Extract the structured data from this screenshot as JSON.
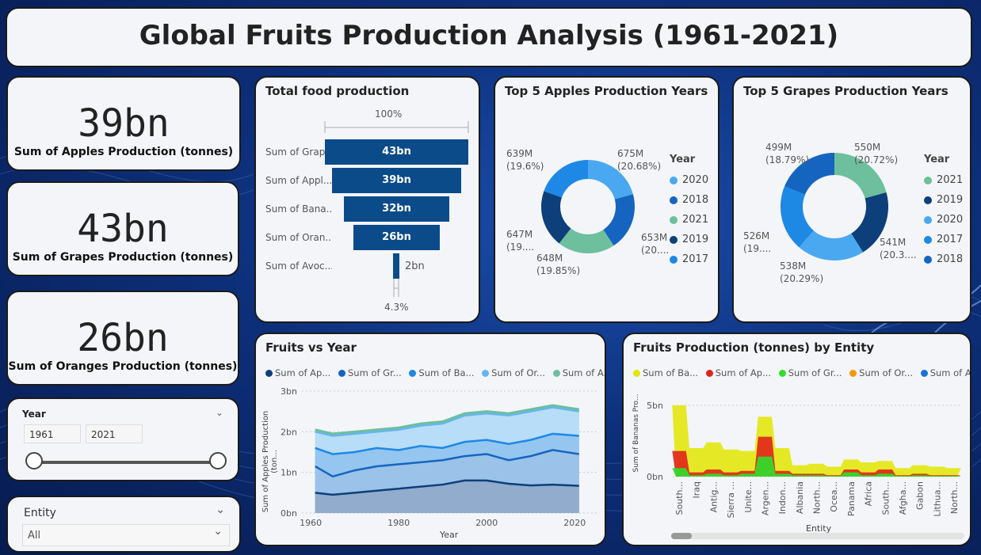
{
  "title": "Global Fruits Production Analysis (1961-2021)",
  "kpis": [
    {
      "value": "39bn",
      "label": "Sum of Apples Production (tonnes)"
    },
    {
      "value": "43bn",
      "label": "Sum of Grapes  Production (tonnes)"
    },
    {
      "value": "26bn",
      "label": "Sum of Oranges  Production (tonnes)"
    }
  ],
  "year_slicer": {
    "label": "Year",
    "from": "1961",
    "to": "2021"
  },
  "entity_slicer": {
    "label": "Entity",
    "value": "All"
  },
  "funnel": {
    "title": "Total food production",
    "top_pct": "100%",
    "bottom_pct": "4.3%",
    "bars": [
      {
        "label": "Sum of Grap...",
        "value": "43bn"
      },
      {
        "label": "Sum of Appl...",
        "value": "39bn"
      },
      {
        "label": "Sum of Bana...",
        "value": "32bn"
      },
      {
        "label": "Sum of Oran...",
        "value": "26bn"
      },
      {
        "label": "Sum of Avoc...",
        "value": "2bn"
      }
    ]
  },
  "apples_donut": {
    "title": "Top 5 Apples Production Years",
    "legend_title": "Year",
    "legend": [
      {
        "label": "2020",
        "color": "#4aa8f0"
      },
      {
        "label": "2018",
        "color": "#1565c0"
      },
      {
        "label": "2021",
        "color": "#6dbf9e"
      },
      {
        "label": "2019",
        "color": "#0d3f7a"
      },
      {
        "label": "2017",
        "color": "#1e88e5"
      }
    ],
    "labels": [
      {
        "v": "675M",
        "p": "(20.68%)"
      },
      {
        "v": "653M",
        "p": "(20...."
      },
      {
        "v": "648M",
        "p": "(19.85%)"
      },
      {
        "v": "647M",
        "p": "(19...."
      },
      {
        "v": "639M",
        "p": "(19.6%)"
      }
    ]
  },
  "grapes_donut": {
    "title": "Top 5 Grapes Production Years",
    "legend_title": "Year",
    "legend": [
      {
        "label": "2021",
        "color": "#6dbf9e"
      },
      {
        "label": "2019",
        "color": "#0d3f7a"
      },
      {
        "label": "2020",
        "color": "#4aa8f0"
      },
      {
        "label": "2017",
        "color": "#1e88e5"
      },
      {
        "label": "2018",
        "color": "#1565c0"
      }
    ],
    "labels": [
      {
        "v": "550M",
        "p": "(20.72%)"
      },
      {
        "v": "541M",
        "p": "(20.3...."
      },
      {
        "v": "538M",
        "p": "(20.29%)"
      },
      {
        "v": "526M",
        "p": "(19...."
      },
      {
        "v": "499M",
        "p": "(18.79%)"
      }
    ]
  },
  "fruits_vs_year": {
    "title": "Fruits vs Year",
    "legend": [
      {
        "label": "Sum of Ap...",
        "color": "#0d3f7a"
      },
      {
        "label": "Sum of Gr...",
        "color": "#1565c0"
      },
      {
        "label": "Sum of Ba...",
        "color": "#1e88e5"
      },
      {
        "label": "Sum of Or...",
        "color": "#64b5f6"
      },
      {
        "label": "Sum of A...",
        "color": "#6dbf9e"
      }
    ],
    "xlabel": "Year",
    "ylabel": "Sum of Apples Production (ton...",
    "yticks": [
      "0bn",
      "1bn",
      "2bn",
      "3bn"
    ],
    "xticks": [
      "1960",
      "1980",
      "2000",
      "2020"
    ]
  },
  "entity_chart": {
    "title": "Fruits Production (tonnes) by Entity",
    "legend": [
      {
        "label": "Sum of Ba...",
        "color": "#e2e600"
      },
      {
        "label": "Sum of Ap...",
        "color": "#e0241b"
      },
      {
        "label": "Sum of Gr...",
        "color": "#2ee02e"
      },
      {
        "label": "Sum of Or...",
        "color": "#f59a12"
      },
      {
        "label": "Sum of A...",
        "color": "#1e6fd9"
      }
    ],
    "xlabel": "Entity",
    "ylabel": "Sum of Bananas Pro...",
    "yticks": [
      "0bn",
      "5bn"
    ],
    "entities": [
      "South...",
      "Iraq",
      "Antig...",
      "Sierra ...",
      "Unite...",
      "Argen...",
      "Indon...",
      "Albania",
      "North...",
      "Ocea...",
      "Panama",
      "Africa",
      "South...",
      "Afgha...",
      "Gabon",
      "Lithua...",
      "North..."
    ]
  },
  "chart_data": [
    {
      "type": "area",
      "title": "Fruits vs Year",
      "xlabel": "Year",
      "ylabel": "Sum of Apples Production (ton...",
      "ylim": [
        0,
        3
      ],
      "x": [
        1961,
        1965,
        1970,
        1975,
        1980,
        1985,
        1990,
        1995,
        2000,
        2005,
        2010,
        2015,
        2021
      ],
      "series": [
        {
          "name": "Sum of Ap...",
          "values": [
            0.5,
            0.45,
            0.5,
            0.55,
            0.6,
            0.65,
            0.7,
            0.8,
            0.8,
            0.72,
            0.68,
            0.7,
            0.67
          ]
        },
        {
          "name": "Sum of Gr...",
          "values": [
            1.15,
            0.9,
            1.05,
            1.15,
            1.2,
            1.25,
            1.3,
            1.4,
            1.45,
            1.3,
            1.4,
            1.55,
            1.45
          ]
        },
        {
          "name": "Sum of Ba...",
          "values": [
            1.6,
            1.45,
            1.5,
            1.6,
            1.55,
            1.65,
            1.6,
            1.75,
            1.8,
            1.7,
            1.8,
            1.95,
            1.9
          ]
        },
        {
          "name": "Sum of Or...",
          "values": [
            2.0,
            1.9,
            1.95,
            2.0,
            2.05,
            2.15,
            2.2,
            2.4,
            2.45,
            2.4,
            2.5,
            2.6,
            2.5
          ]
        },
        {
          "name": "Sum of A...",
          "values": [
            2.05,
            1.95,
            2.0,
            2.05,
            2.1,
            2.2,
            2.25,
            2.45,
            2.5,
            2.45,
            2.55,
            2.65,
            2.55
          ]
        }
      ]
    },
    {
      "type": "area",
      "title": "Fruits Production (tonnes) by Entity",
      "xlabel": "Entity",
      "ylim": [
        0,
        5
      ],
      "categories": [
        "South...",
        "Iraq",
        "Antig...",
        "Sierra ...",
        "Unite...",
        "Argen...",
        "Indon...",
        "Albania",
        "North...",
        "Ocea...",
        "Panama",
        "Africa",
        "South...",
        "Afgha...",
        "Gabon",
        "Lithua...",
        "North..."
      ],
      "series": [
        {
          "name": "Sum of Ba...",
          "values": [
            5.0,
            2.0,
            2.4,
            1.9,
            1.8,
            4.2,
            2.0,
            0.8,
            0.9,
            0.7,
            1.2,
            1.0,
            1.1,
            0.6,
            0.8,
            0.7,
            0.6
          ]
        },
        {
          "name": "Sum of Ap...",
          "values": [
            1.8,
            0.3,
            0.5,
            0.3,
            0.4,
            2.8,
            0.4,
            0.2,
            0.2,
            0.1,
            0.5,
            0.3,
            0.5,
            0.1,
            0.2,
            0.1,
            0.1
          ]
        },
        {
          "name": "Sum of Gr...",
          "values": [
            0.6,
            0.1,
            0.2,
            0.1,
            0.2,
            1.4,
            0.2,
            0.1,
            0.1,
            0.05,
            0.3,
            0.1,
            0.2,
            0.05,
            0.1,
            0.05,
            0.05
          ]
        }
      ]
    }
  ]
}
